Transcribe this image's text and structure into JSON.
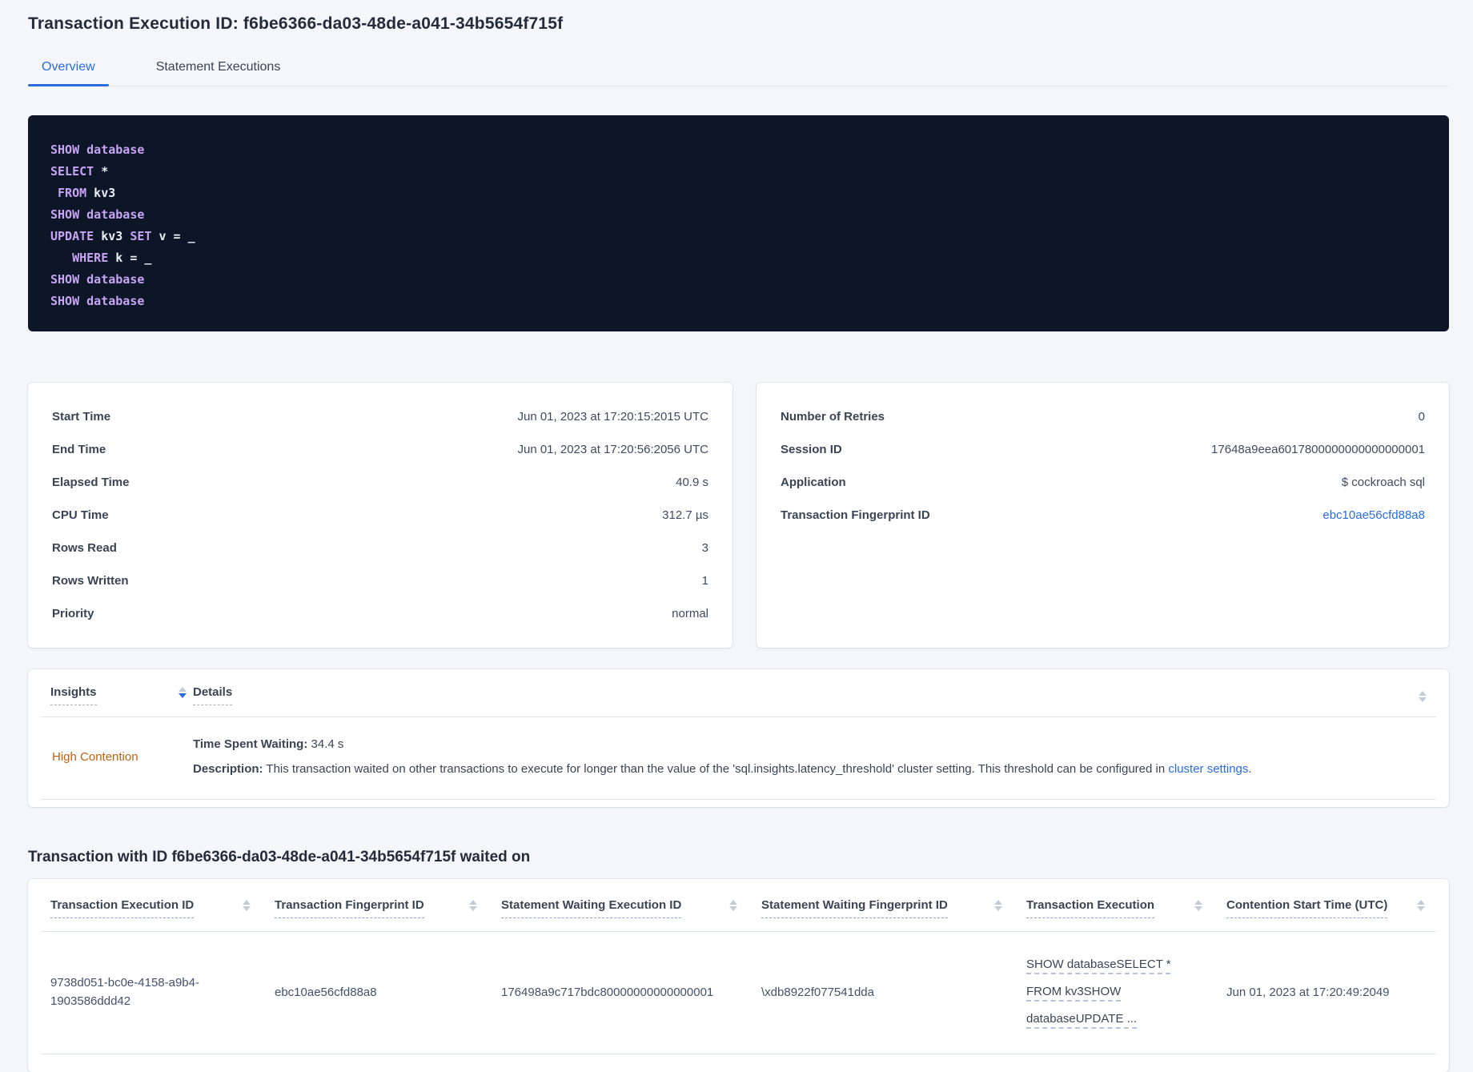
{
  "page": {
    "title": "Transaction Execution ID: f6be6366-da03-48de-a041-34b5654f715f",
    "background": "#f4f6fa"
  },
  "tabs": [
    {
      "label": "Overview",
      "active": true
    },
    {
      "label": "Statement Executions",
      "active": false
    }
  ],
  "sql_box": {
    "background": "#0c1627",
    "keyword_color": "#c8a4f5",
    "text_color": "#eceef5",
    "lines": [
      [
        {
          "text": "SHOW database",
          "kw": true
        }
      ],
      [
        {
          "text": "SELECT",
          "kw": true
        },
        {
          "text": " *",
          "kw": false
        }
      ],
      [
        {
          "text": " FROM",
          "kw": true
        },
        {
          "text": " kv3",
          "kw": false
        }
      ],
      [
        {
          "text": "SHOW database",
          "kw": true
        }
      ],
      [
        {
          "text": "UPDATE",
          "kw": true
        },
        {
          "text": " kv3 ",
          "kw": false
        },
        {
          "text": "SET",
          "kw": true
        },
        {
          "text": " v = _",
          "kw": false
        }
      ],
      [
        {
          "text": "   WHERE",
          "kw": true
        },
        {
          "text": " k = _",
          "kw": false
        }
      ],
      [
        {
          "text": "SHOW database",
          "kw": true
        }
      ],
      [
        {
          "text": "SHOW database",
          "kw": true
        }
      ]
    ]
  },
  "summary_left": {
    "rows": [
      {
        "label": "Start Time",
        "value": "Jun 01, 2023 at 17:20:15:2015 UTC"
      },
      {
        "label": "End Time",
        "value": "Jun 01, 2023 at 17:20:56:2056 UTC"
      },
      {
        "label": "Elapsed Time",
        "value": "40.9 s"
      },
      {
        "label": "CPU Time",
        "value": "312.7 µs"
      },
      {
        "label": "Rows Read",
        "value": "3"
      },
      {
        "label": "Rows Written",
        "value": "1"
      },
      {
        "label": "Priority",
        "value": "normal"
      }
    ]
  },
  "summary_right": {
    "rows": [
      {
        "label": "Number of Retries",
        "value": "0"
      },
      {
        "label": "Session ID",
        "value": "17648a9eea6017800000000000000001"
      },
      {
        "label": "Application",
        "value": "$ cockroach sql"
      },
      {
        "label": "Transaction Fingerprint ID",
        "value": "ebc10ae56cfd88a8",
        "link": true
      }
    ]
  },
  "insights_table": {
    "insights_header": "Insights",
    "details_header": "Details",
    "row": {
      "insight": "High Contention",
      "insight_color": "#c0610f",
      "time_spent_waiting_label": "Time Spent Waiting:",
      "time_spent_waiting_value": "34.4 s",
      "description_label": "Description:",
      "description_text": "This transaction waited on other transactions to execute for longer than the value of the 'sql.insights.latency_threshold' cluster setting. This threshold can be configured in ",
      "description_link_text": "cluster settings",
      "description_after_link": "."
    }
  },
  "waited_on": {
    "heading": "Transaction with ID f6be6366-da03-48de-a041-34b5654f715f waited on",
    "columns": [
      "Transaction Execution ID",
      "Transaction Fingerprint ID",
      "Statement Waiting Execution ID",
      "Statement Waiting Fingerprint ID",
      "Transaction Execution",
      "Contention Start Time (UTC)"
    ],
    "rows": [
      {
        "transaction_execution_id": "9738d051-bc0e-4158-a9b4-1903586ddd42",
        "transaction_fingerprint_id": "ebc10ae56cfd88a8",
        "statement_waiting_execution_id": "176498a9c717bdc80000000000000001",
        "statement_waiting_fingerprint_id": "\\xdb8922f077541dda",
        "transaction_execution": "SHOW databaseSELECT * FROM kv3SHOW databaseUPDATE ...",
        "contention_start_time": "Jun 01, 2023 at 17:20:49:2049"
      }
    ]
  },
  "colors": {
    "accent_blue": "#2a6ce0",
    "insight_orange": "#c0610f",
    "sort_arrow_inactive": "#c3ccd8",
    "sort_arrow_active": "#2a6ce0"
  }
}
